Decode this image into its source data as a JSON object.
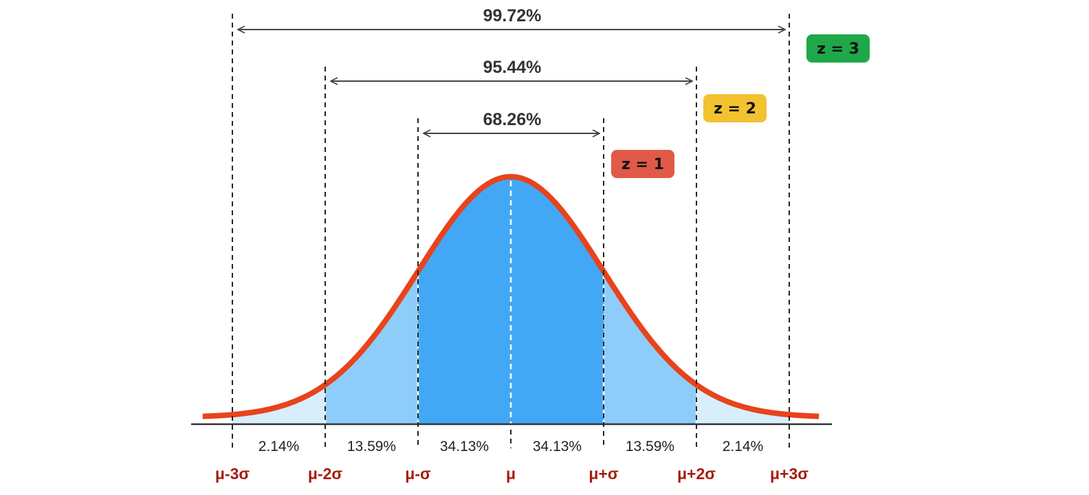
{
  "chart_data": {
    "type": "area",
    "title": "",
    "distribution": "normal",
    "axis_labels": [
      "μ-3σ",
      "μ-2σ",
      "μ-σ",
      "μ",
      "μ+σ",
      "μ+2σ",
      "μ+3σ"
    ],
    "axis_z": [
      -3,
      -2,
      -1,
      0,
      1,
      2,
      3
    ],
    "segments": [
      {
        "from": -3,
        "to": -2,
        "label": "2.14%",
        "value": 2.14
      },
      {
        "from": -2,
        "to": -1,
        "label": "13.59%",
        "value": 13.59
      },
      {
        "from": -1,
        "to": 0,
        "label": "34.13%",
        "value": 34.13
      },
      {
        "from": 0,
        "to": 1,
        "label": "34.13%",
        "value": 34.13
      },
      {
        "from": 1,
        "to": 2,
        "label": "13.59%",
        "value": 13.59
      },
      {
        "from": 2,
        "to": 3,
        "label": "2.14%",
        "value": 2.14
      }
    ],
    "ranges": [
      {
        "z": 1,
        "label": "68.26%",
        "value": 68.26,
        "badge": "z = 1",
        "color": "#e05a47"
      },
      {
        "z": 2,
        "label": "95.44%",
        "value": 95.44,
        "badge": "z = 2",
        "color": "#f2c230"
      },
      {
        "z": 3,
        "label": "99.72%",
        "value": 99.72,
        "badge": "z = 3",
        "color": "#1fa84a"
      }
    ],
    "colors": {
      "curve": "#e8431c",
      "band1": "#42a8f5",
      "band2": "#8ecdf9",
      "band3": "#d8eefc"
    }
  }
}
